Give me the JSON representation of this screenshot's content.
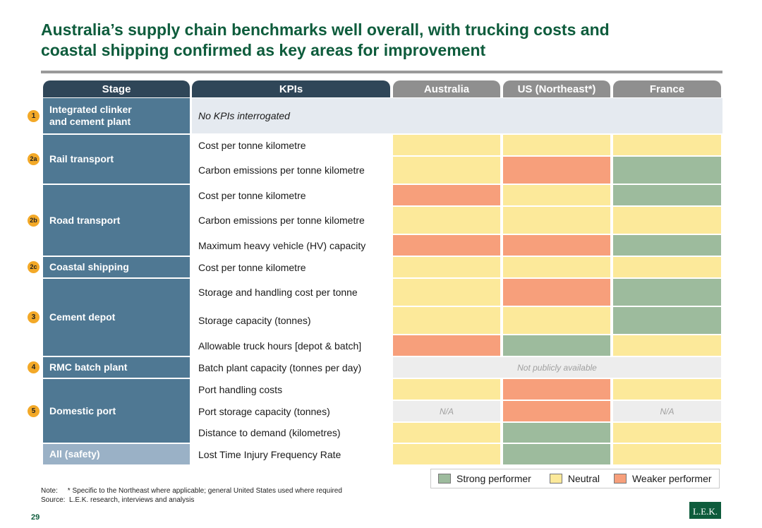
{
  "title_line1": "Australia’s supply chain benchmarks well overall, with trucking costs and",
  "title_line2": "coastal shipping confirmed as key areas for improvement",
  "headers": {
    "stage": "Stage",
    "kpis": "KPIs",
    "australia": "Australia",
    "us": "US (Northeast*)",
    "france": "France"
  },
  "stages": [
    {
      "badge": "1",
      "label_line1": "Integrated clinker",
      "label_line2": "and cement plant"
    },
    {
      "badge": "2a",
      "label": "Rail transport"
    },
    {
      "badge": "2b",
      "label": "Road transport"
    },
    {
      "badge": "2c",
      "label": "Coastal shipping"
    },
    {
      "badge": "3",
      "label": "Cement depot"
    },
    {
      "badge": "4",
      "label": "RMC batch plant"
    },
    {
      "badge": "5",
      "label": "Domestic port"
    },
    {
      "badge": "",
      "label": "All (safety)"
    }
  ],
  "kpis": [
    {
      "stage": 0,
      "label": "No KPIs interrogated",
      "australia": "",
      "us": "",
      "france": ""
    },
    {
      "stage": 1,
      "label": "Cost per tonne kilometre",
      "australia": "neutral",
      "us": "neutral",
      "france": "neutral"
    },
    {
      "stage": 1,
      "label": "Carbon emissions per tonne kilometre",
      "australia": "neutral",
      "us": "weak",
      "france": "strong"
    },
    {
      "stage": 2,
      "label": "Cost per tonne kilometre",
      "australia": "weak",
      "us": "neutral",
      "france": "strong"
    },
    {
      "stage": 2,
      "label": "Carbon emissions per tonne kilometre",
      "australia": "neutral",
      "us": "neutral",
      "france": "neutral"
    },
    {
      "stage": 2,
      "label": "Maximum heavy vehicle (HV) capacity",
      "australia": "weak",
      "us": "weak",
      "france": "strong"
    },
    {
      "stage": 3,
      "label": "Cost per tonne kilometre",
      "australia": "neutral",
      "us": "neutral",
      "france": "neutral"
    },
    {
      "stage": 4,
      "label": "Storage and handling cost per tonne",
      "australia": "neutral",
      "us": "weak",
      "france": "strong"
    },
    {
      "stage": 4,
      "label": "Storage capacity (tonnes)",
      "australia": "neutral",
      "us": "neutral",
      "france": "strong"
    },
    {
      "stage": 4,
      "label": "Allowable truck hours [depot & batch]",
      "australia": "weak",
      "us": "strong",
      "france": "neutral"
    },
    {
      "stage": 5,
      "label": "Batch plant capacity (tonnes per day)",
      "merged_text": "Not publicly available"
    },
    {
      "stage": 6,
      "label": "Port handling costs",
      "australia": "neutral",
      "us": "weak",
      "france": "neutral"
    },
    {
      "stage": 6,
      "label": "Port storage capacity (tonnes)",
      "australia": "na",
      "us": "weak",
      "france": "na"
    },
    {
      "stage": 6,
      "label": "Distance to demand (kilometres)",
      "australia": "neutral",
      "us": "strong",
      "france": "neutral"
    },
    {
      "stage": 7,
      "label": "Lost Time Injury Frequency Rate",
      "australia": "neutral",
      "us": "strong",
      "france": "neutral"
    }
  ],
  "na_text": "N/A",
  "legend": {
    "strong": "Strong performer",
    "neutral": "Neutral",
    "weak": "Weaker performer"
  },
  "colors": {
    "strong": "#9dbb9d",
    "neutral": "#fce99a",
    "weak": "#f79f7b",
    "na": "#ededed",
    "title_green": "#0e5c3c",
    "stage_blue": "#4f7893"
  },
  "note_line": "Note:     * Specific to the Northeast where applicable; general United States used where required",
  "source_line": "Source:  L.E.K. research, interviews and analysis",
  "page_number": "29",
  "logo_text": "L.E.K."
}
